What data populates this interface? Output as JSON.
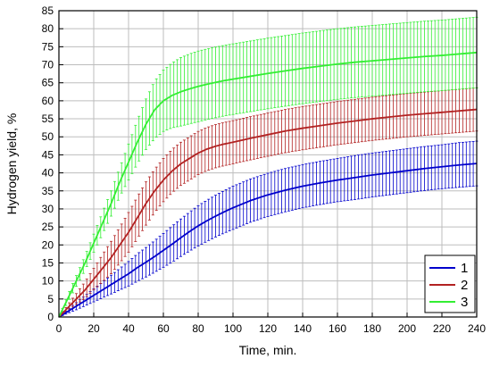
{
  "chart_data": {
    "type": "line",
    "xlabel": "Time, min.",
    "ylabel": "Hydrogen yield, %",
    "xlim": [
      0,
      240
    ],
    "ylim": [
      0,
      85
    ],
    "xticks": [
      0,
      20,
      40,
      60,
      80,
      100,
      120,
      140,
      160,
      180,
      200,
      220,
      240
    ],
    "yticks": [
      0,
      5,
      10,
      15,
      20,
      25,
      30,
      35,
      40,
      45,
      50,
      55,
      60,
      65,
      70,
      75,
      80,
      85
    ],
    "grid": true,
    "legend_position": "bottom-right",
    "error_bars": true,
    "x": [
      0,
      5,
      10,
      15,
      20,
      25,
      30,
      35,
      40,
      45,
      50,
      55,
      60,
      65,
      70,
      75,
      80,
      85,
      90,
      95,
      100,
      110,
      120,
      130,
      140,
      150,
      160,
      170,
      180,
      190,
      200,
      210,
      220,
      230,
      240
    ],
    "series": [
      {
        "name": "1",
        "color": "#0000cc",
        "values": [
          0,
          1.5,
          3.0,
          4.5,
          6.0,
          7.5,
          9.0,
          10.5,
          12.0,
          13.7,
          15.2,
          16.8,
          18.5,
          20.2,
          22.0,
          23.7,
          25.3,
          26.7,
          28.0,
          29.2,
          30.3,
          32.3,
          33.9,
          35.2,
          36.3,
          37.2,
          38.0,
          38.7,
          39.4,
          40.0,
          40.6,
          41.2,
          41.7,
          42.2,
          42.6
        ],
        "errors": [
          0,
          0.5,
          1.0,
          1.4,
          1.8,
          2.2,
          2.6,
          3.0,
          3.4,
          3.8,
          4.1,
          4.4,
          4.7,
          5.0,
          5.2,
          5.4,
          5.6,
          5.7,
          5.8,
          5.9,
          6.0,
          6.0,
          6.0,
          6.0,
          6.0,
          6.0,
          6.0,
          6.1,
          6.1,
          6.1,
          6.1,
          6.1,
          6.1,
          6.2,
          6.2
        ]
      },
      {
        "name": "2",
        "color": "#b22222",
        "values": [
          0,
          2.5,
          5.0,
          7.5,
          10.5,
          13.5,
          16.5,
          20.0,
          23.5,
          27.5,
          31.5,
          35.0,
          38.0,
          40.5,
          42.5,
          44.0,
          45.5,
          46.6,
          47.4,
          48.0,
          48.5,
          49.6,
          50.6,
          51.6,
          52.4,
          53.1,
          53.8,
          54.4,
          55.0,
          55.5,
          56.0,
          56.4,
          56.8,
          57.2,
          57.6
        ],
        "errors": [
          0,
          0.8,
          1.5,
          2.3,
          3.0,
          3.8,
          4.5,
          5.0,
          5.5,
          5.8,
          6.0,
          6.0,
          6.0,
          6.0,
          6.0,
          6.0,
          6.0,
          6.0,
          6.0,
          6.0,
          6.0,
          6.0,
          6.0,
          6.0,
          6.0,
          6.0,
          6.0,
          6.0,
          6.0,
          6.0,
          6.0,
          6.0,
          6.0,
          6.0,
          6.0
        ]
      },
      {
        "name": "3",
        "color": "#33ee33",
        "values": [
          0,
          5.0,
          10.0,
          15.0,
          20.5,
          26.0,
          31.5,
          37.5,
          43.0,
          48.5,
          53.5,
          57.5,
          60.0,
          61.5,
          62.5,
          63.3,
          64.0,
          64.6,
          65.1,
          65.6,
          66.0,
          66.8,
          67.6,
          68.3,
          69.0,
          69.6,
          70.2,
          70.7,
          71.1,
          71.5,
          71.9,
          72.3,
          72.6,
          73.0,
          73.4
        ],
        "errors": [
          0,
          1.0,
          1.5,
          2.0,
          2.5,
          3.0,
          3.5,
          4.0,
          5.0,
          6.0,
          7.0,
          8.0,
          8.5,
          9.0,
          9.5,
          9.7,
          9.8,
          9.8,
          9.8,
          9.8,
          9.8,
          9.8,
          9.8,
          9.8,
          9.8,
          9.8,
          9.8,
          9.8,
          9.8,
          9.8,
          9.8,
          9.8,
          9.8,
          9.8,
          9.8
        ]
      }
    ]
  }
}
